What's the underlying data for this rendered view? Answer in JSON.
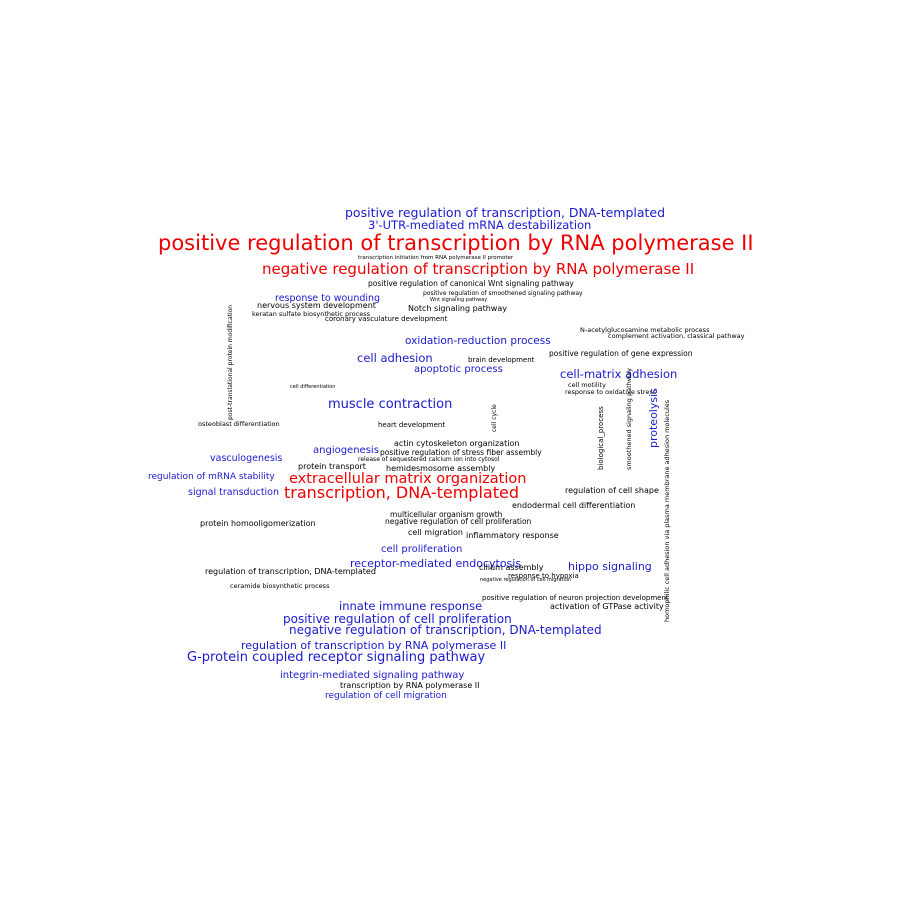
{
  "colors": {
    "red": "#ee0000",
    "blue": "#1a1acc",
    "black": "#000000",
    "background": "#ffffff"
  },
  "words": {
    "w01": "positive regulation of transcription, DNA-templated",
    "w02": "3'-UTR-mediated mRNA destabilization",
    "w03": "positive regulation of transcription by RNA polymerase II",
    "w04": "negative regulation of transcription by RNA polymerase II",
    "w05": "positive regulation of canonical Wnt signaling pathway",
    "w06": "nervous system development",
    "w07": "response to wounding",
    "w08": "Notch signaling pathway",
    "w09": "keratan sulfate biosynthetic process",
    "w10": "coronary vasculature development",
    "w11": "N-acetylglucosamine metabolic process",
    "w12": "complement activation, classical pathway",
    "w13": "cell adhesion",
    "w14": "oxidation-reduction process",
    "w15": "brain development",
    "w16": "positive regulation of gene expression",
    "w17": "apoptotic process",
    "w18": "cell-matrix adhesion",
    "w19": "cell motility",
    "w20": "response to oxidative stress",
    "w21": "muscle contraction",
    "w22": "proteolysis",
    "w23": "osteoblast differentiation",
    "w24": "heart development",
    "w25": "actin cytoskeleton organization",
    "w26": "angiogenesis",
    "w27": "positive regulation of stress fiber assembly",
    "w28": "vasculogenesis",
    "w29": "protein transport",
    "w30": "hemidesmosome assembly",
    "w31": "regulation of mRNA stability",
    "w32": "extracellular matrix organization",
    "w33": "signal transduction",
    "w34": "transcription, DNA-templated",
    "w35": "regulation of cell shape",
    "w36": "endodermal cell differentiation",
    "w37": "multicellular organism growth",
    "w38": "protein homooligomerization",
    "w39": "negative regulation of cell proliferation",
    "w40": "cell migration",
    "w41": "inflammatory response",
    "w42": "cell proliferation",
    "w43": "receptor-mediated endocytosis",
    "w44": "cilium assembly",
    "w45": "hippo signaling",
    "w46": "regulation of transcription, DNA-templated",
    "w47": "response to hypoxia",
    "w48": "positive regulation of neuron projection development",
    "w49": "innate immune response",
    "w50": "activation of GTPase activity",
    "w51": "positive regulation of cell proliferation",
    "w52": "negative regulation of transcription, DNA-templated",
    "w53": "regulation of transcription by RNA polymerase II",
    "w54": "G-protein coupled receptor signaling pathway",
    "w55": "integrin-mediated signaling pathway",
    "w56": "transcription by RNA polymerase II",
    "w57": "regulation of cell migration",
    "w58": "transcription initiation from RNA polymerase II promoter",
    "w59": "positive regulation of smoothened signaling pathway",
    "w60": "release of sequestered calcium ion into cytosol",
    "w61": "homophilic cell adhesion via plasma membrane adhesion molecules",
    "w62": "post-translational protein modification",
    "w63": "cell cycle",
    "w64": "biological_process",
    "w65": "smoothened signaling pathway",
    "w66": "negative regulation of cell migration",
    "w67": "ceramide biosynthetic process",
    "w68": "cell differentiation",
    "w69": "Wnt signaling pathway"
  }
}
